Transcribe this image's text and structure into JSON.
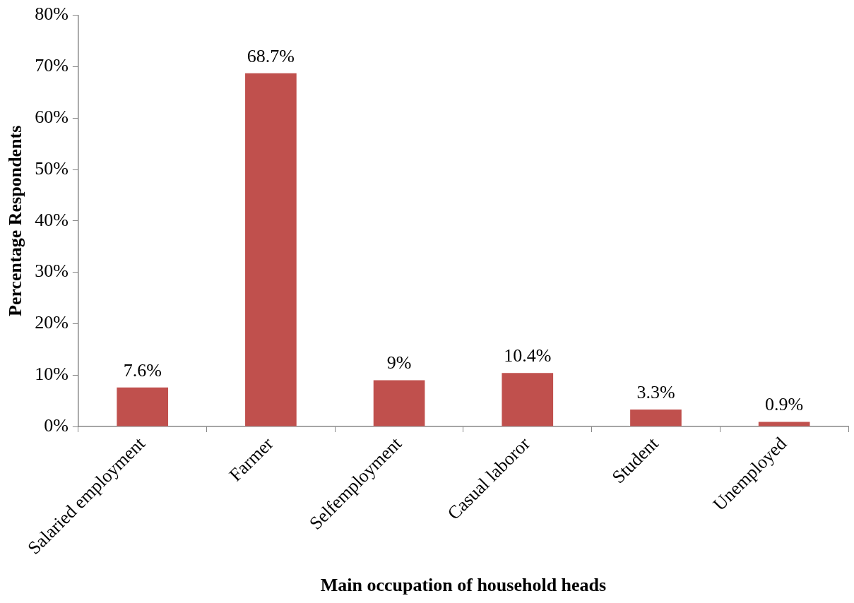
{
  "chart_data": {
    "type": "bar",
    "xlabel": "Main occupation of household heads",
    "ylabel": "Percentage Respondents",
    "categories": [
      "Salaried employment",
      "Farmer",
      "Selfemployment",
      "Casual laboror",
      "Student",
      "Unemployed"
    ],
    "values": [
      7.6,
      68.7,
      9,
      10.4,
      3.3,
      0.9
    ],
    "value_labels": [
      "7.6%",
      "68.7%",
      "9%",
      "10.4%",
      "3.3%",
      "0.9%"
    ],
    "color": "#c0504d",
    "ylim": [
      0,
      80
    ],
    "yticks": [
      {
        "value": 0,
        "label": "0%"
      },
      {
        "value": 10,
        "label": "10%"
      },
      {
        "value": 20,
        "label": "20%"
      },
      {
        "value": 30,
        "label": "30%"
      },
      {
        "value": 40,
        "label": "40%"
      },
      {
        "value": 50,
        "label": "50%"
      },
      {
        "value": 60,
        "label": "60%"
      },
      {
        "value": 70,
        "label": "70%"
      },
      {
        "value": 80,
        "label": "80%"
      }
    ],
    "grid": false,
    "legend": false
  }
}
